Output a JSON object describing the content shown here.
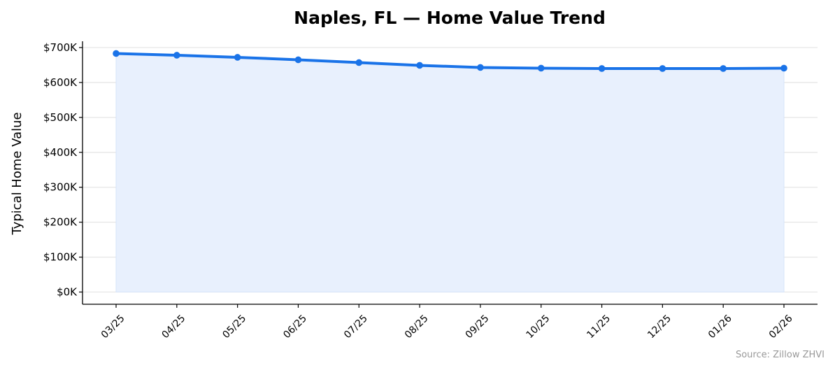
{
  "chart_data": {
    "type": "area",
    "title": "Naples, FL — Home Value Trend",
    "xlabel": "",
    "ylabel": "Typical Home Value",
    "source": "Source: Zillow ZHVI",
    "categories": [
      "03/25",
      "04/25",
      "05/25",
      "06/25",
      "07/25",
      "08/25",
      "09/25",
      "10/25",
      "11/25",
      "12/25",
      "01/26",
      "02/26"
    ],
    "values": [
      683000,
      678000,
      672000,
      665000,
      657000,
      649000,
      643000,
      641000,
      640000,
      640000,
      640000,
      641000
    ],
    "ylim": [
      -35000,
      718000
    ],
    "yticks": [
      {
        "value": 0,
        "label": "$0K"
      },
      {
        "value": 100000,
        "label": "$100K"
      },
      {
        "value": 200000,
        "label": "$200K"
      },
      {
        "value": 300000,
        "label": "$300K"
      },
      {
        "value": 400000,
        "label": "$400K"
      },
      {
        "value": 500000,
        "label": "$500K"
      },
      {
        "value": 600000,
        "label": "$600K"
      },
      {
        "value": 700000,
        "label": "$700K"
      }
    ],
    "grid": "horizontal",
    "legend": "none",
    "colors": {
      "line": "#1a73e8",
      "fill": "#e8f0fd",
      "grid": "#e6e6e6",
      "axis": "#000000",
      "source": "#999999"
    }
  }
}
